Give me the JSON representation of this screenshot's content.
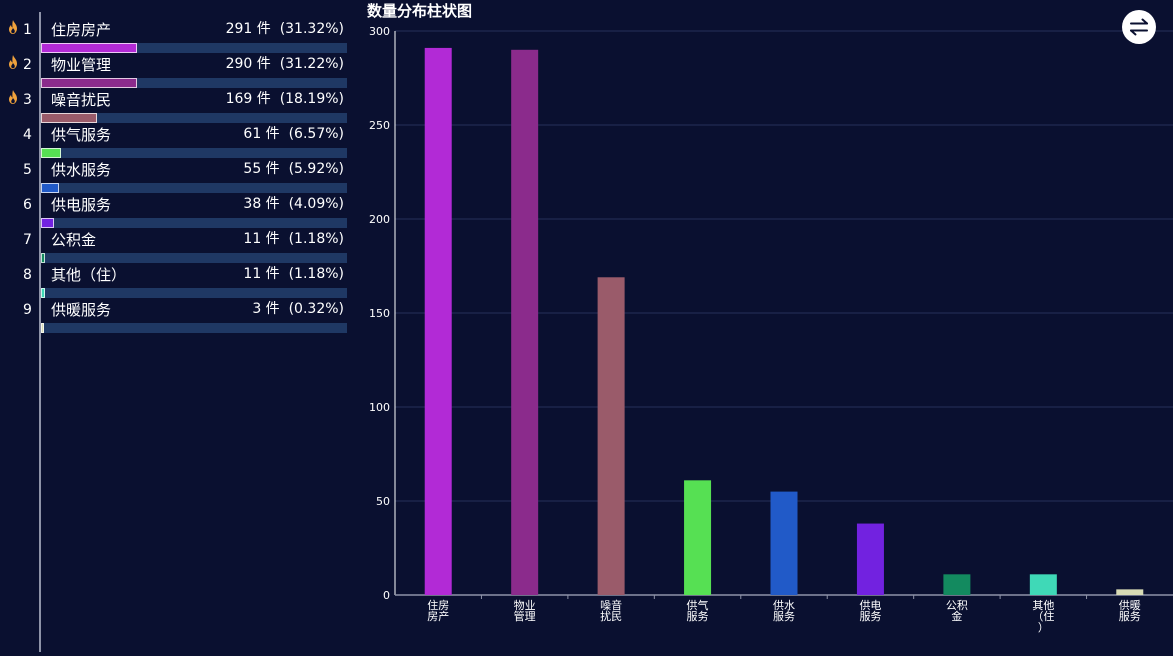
{
  "title": "数量分布柱状图",
  "toggle_icon": "swap-arrows-icon",
  "ranking": [
    {
      "rank": "1",
      "hot": true,
      "name": "住房房产",
      "count_text": "291 件",
      "percent_text": "(31.32%)",
      "color": "#b22ad6"
    },
    {
      "rank": "2",
      "hot": true,
      "name": "物业管理",
      "count_text": "290 件",
      "percent_text": "(31.22%)",
      "color": "#8b2b8c"
    },
    {
      "rank": "3",
      "hot": true,
      "name": "噪音扰民",
      "count_text": "169 件",
      "percent_text": "(18.19%)",
      "color": "#9a5b6a"
    },
    {
      "rank": "4",
      "hot": false,
      "name": "供气服务",
      "count_text": "61 件",
      "percent_text": "(6.57%)",
      "color": "#56e053"
    },
    {
      "rank": "5",
      "hot": false,
      "name": "供水服务",
      "count_text": "55 件",
      "percent_text": "(5.92%)",
      "color": "#215ac8"
    },
    {
      "rank": "6",
      "hot": false,
      "name": "供电服务",
      "count_text": "38 件",
      "percent_text": "(4.09%)",
      "color": "#7222e0"
    },
    {
      "rank": "7",
      "hot": false,
      "name": "公积金",
      "count_text": "11 件",
      "percent_text": "(1.18%)",
      "color": "#138a5f"
    },
    {
      "rank": "8",
      "hot": false,
      "name": "其他（住）",
      "count_text": "11 件",
      "percent_text": "(1.18%)",
      "color": "#3fd9b7"
    },
    {
      "rank": "9",
      "hot": false,
      "name": "供暖服务",
      "count_text": "3 件",
      "percent_text": "(0.32%)",
      "color": "#d8dbb5"
    }
  ],
  "chart_data": {
    "type": "bar",
    "title": "数量分布柱状图",
    "categories": [
      "住房房产",
      "物业管理",
      "噪音扰民",
      "供气服务",
      "供水服务",
      "供电服务",
      "公积金",
      "其他（住）",
      "供暖服务"
    ],
    "category_label_lines": [
      [
        "住房",
        "房产"
      ],
      [
        "物业",
        "管理"
      ],
      [
        "噪音",
        "扰民"
      ],
      [
        "供气",
        "服务"
      ],
      [
        "供水",
        "服务"
      ],
      [
        "供电",
        "服务"
      ],
      [
        "公积",
        "金"
      ],
      [
        "其他",
        "（住",
        "）"
      ],
      [
        "供暖",
        "服务"
      ]
    ],
    "values": [
      291,
      290,
      169,
      61,
      55,
      38,
      11,
      11,
      3
    ],
    "colors": [
      "#b22ad6",
      "#8b2b8c",
      "#9a5b6a",
      "#56e053",
      "#215ac8",
      "#7222e0",
      "#138a5f",
      "#3fd9b7",
      "#d8dbb5"
    ],
    "ylim": [
      0,
      300
    ],
    "yticks": [
      0,
      50,
      100,
      150,
      200,
      250,
      300
    ],
    "xlabel": "",
    "ylabel": "",
    "grid": true
  }
}
